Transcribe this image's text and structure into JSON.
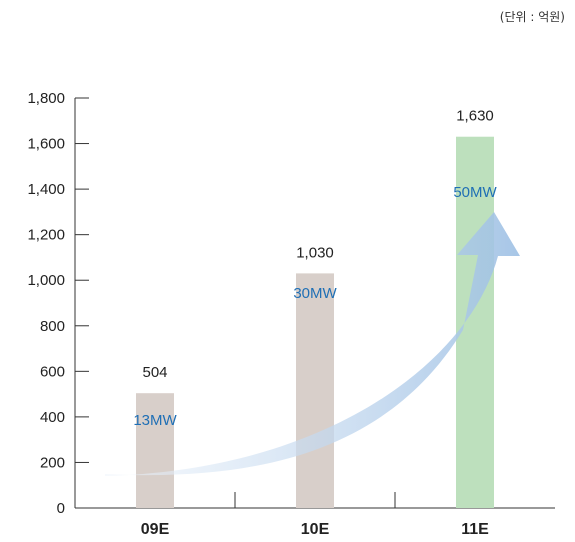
{
  "unit_note": "(단위 : 억원)",
  "colors": {
    "bar_grey": "#d8cfca",
    "bar_green": "#bde0bd",
    "capacity_text": "#1f6fb5",
    "arrow_light": "#eef4fb",
    "arrow_dark": "#9ec0e4",
    "axis": "#333333"
  },
  "chart_data": {
    "type": "bar",
    "categories": [
      "09E",
      "10E",
      "11E"
    ],
    "values": [
      504,
      1030,
      1630
    ],
    "value_labels": [
      "504",
      "1,030",
      "1,630"
    ],
    "capacity_labels": [
      "13MW",
      "30MW",
      "50MW"
    ],
    "bar_colors": [
      "#d8cfca",
      "#d8cfca",
      "#bde0bd"
    ],
    "ylim": [
      0,
      1800
    ],
    "yticks": [
      0,
      200,
      400,
      600,
      800,
      1000,
      1200,
      1400,
      1600,
      1800
    ],
    "ytick_labels": [
      "0",
      "200",
      "400",
      "600",
      "800",
      "1,000",
      "1,200",
      "1,400",
      "1,600",
      "1,800"
    ],
    "grid": false,
    "annotation": "upward-trend-arrow"
  }
}
